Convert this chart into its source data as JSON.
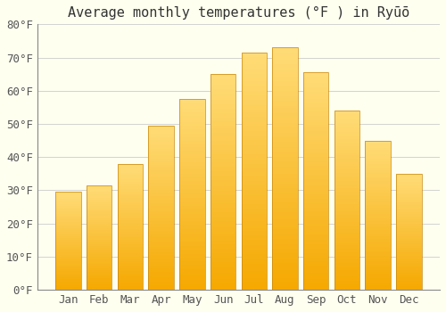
{
  "title": "Average monthly temperatures (°F ) in Ryūō",
  "months": [
    "Jan",
    "Feb",
    "Mar",
    "Apr",
    "May",
    "Jun",
    "Jul",
    "Aug",
    "Sep",
    "Oct",
    "Nov",
    "Dec"
  ],
  "values": [
    29.5,
    31.5,
    38,
    49.5,
    57.5,
    65,
    71.5,
    73,
    65.5,
    54,
    45,
    35
  ],
  "bar_color_bottom": "#F5A800",
  "bar_color_top": "#FFD878",
  "ylim": [
    0,
    80
  ],
  "yticks": [
    0,
    10,
    20,
    30,
    40,
    50,
    60,
    70,
    80
  ],
  "ytick_labels": [
    "0°F",
    "10°F",
    "20°F",
    "30°F",
    "40°F",
    "50°F",
    "60°F",
    "70°F",
    "80°F"
  ],
  "background_color": "#FFFFF0",
  "grid_color": "#cccccc",
  "title_fontsize": 11,
  "tick_fontsize": 9,
  "bar_width": 0.82
}
